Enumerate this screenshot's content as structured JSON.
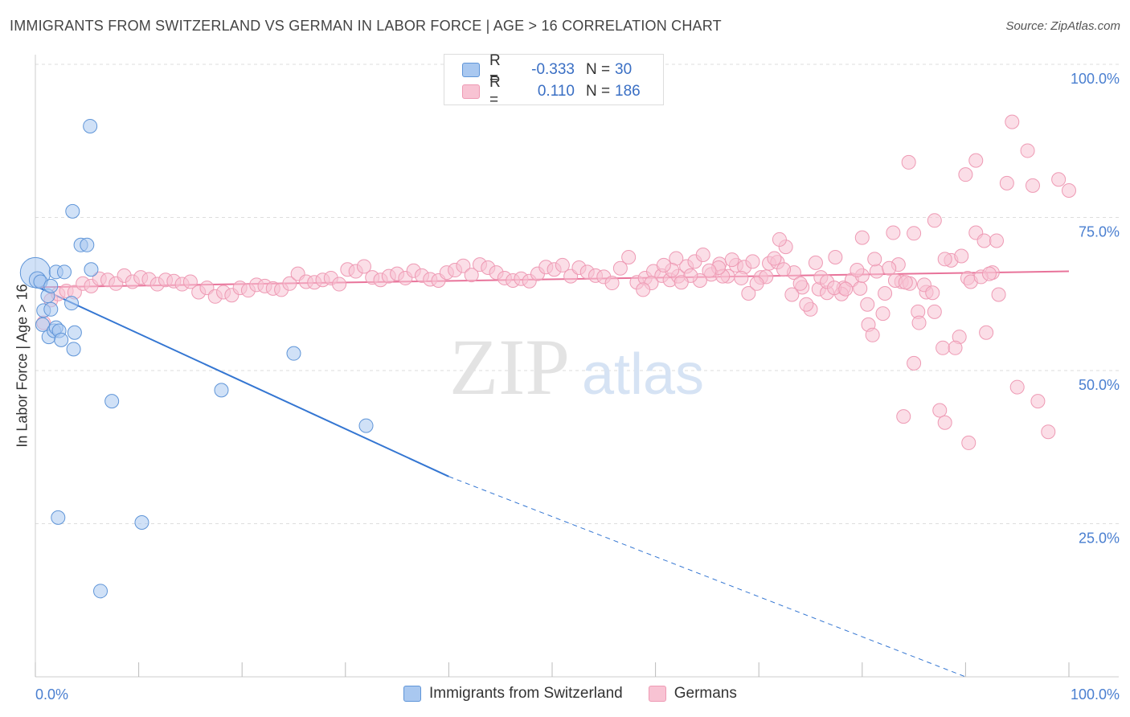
{
  "header": {
    "title": "IMMIGRANTS FROM SWITZERLAND VS GERMAN IN LABOR FORCE | AGE > 16 CORRELATION CHART",
    "source": "Source: ZipAtlas.com"
  },
  "watermark": {
    "zip": "ZIP",
    "atlas": "atlas"
  },
  "legend_top": {
    "rows": [
      {
        "r_label": "R =",
        "r_value": "-0.333",
        "n_label": "N =",
        "n_value": "30",
        "color": "#a9c8f0",
        "stroke": "#7aa6e0"
      },
      {
        "r_label": "R =",
        "r_value": "0.110",
        "n_label": "N =",
        "n_value": "186",
        "color": "#f8c3d3",
        "stroke": "#ee9ab4"
      }
    ]
  },
  "chart_data": {
    "type": "scatter",
    "xlabel": "",
    "ylabel": "In Labor Force | Age > 16",
    "xlim": [
      0,
      100
    ],
    "ylim": [
      0,
      100
    ],
    "x_tick_labels": [
      "0.0%",
      "100.0%"
    ],
    "y_tick_labels": [
      "25.0%",
      "50.0%",
      "75.0%",
      "100.0%"
    ],
    "y_ticks": [
      25,
      50,
      75,
      100
    ],
    "grid": true,
    "legend_placement": "top-center",
    "series": [
      {
        "name": "Immigrants from Switzerland",
        "color": "#a9c8f0",
        "stroke": "#5f95d8",
        "trend_color": "#3476d2",
        "trend": {
          "x0": 0,
          "y0": 63.8,
          "x1": 40,
          "y1": 32.7,
          "dash_to_x": 90,
          "dash_to_y": 0
        },
        "points": [
          [
            0,
            66,
            2.2
          ],
          [
            0.2,
            64.8,
            1.2
          ],
          [
            0.5,
            64.5,
            1
          ],
          [
            0.8,
            59.8,
            1
          ],
          [
            1.2,
            62.2,
            1
          ],
          [
            1.5,
            60,
            1
          ],
          [
            2,
            66.1,
            1
          ],
          [
            2.8,
            66.1,
            1
          ],
          [
            3.5,
            61,
            1
          ],
          [
            0.7,
            57.5,
            1
          ],
          [
            1.3,
            55.5,
            1
          ],
          [
            1.8,
            56.5,
            1
          ],
          [
            2,
            57,
            1
          ],
          [
            2.3,
            56.5,
            1
          ],
          [
            2.5,
            55,
            1
          ],
          [
            3.6,
            76,
            1
          ],
          [
            4.4,
            70.5,
            1
          ],
          [
            5,
            70.5,
            1
          ],
          [
            5.4,
            66.5,
            1
          ],
          [
            3.7,
            53.5,
            1
          ],
          [
            3.8,
            56.2,
            1
          ],
          [
            5.3,
            89.9,
            1
          ],
          [
            7.4,
            45,
            1
          ],
          [
            18,
            46.8,
            1
          ],
          [
            25,
            52.8,
            1
          ],
          [
            32,
            41,
            1
          ],
          [
            2.2,
            26,
            1
          ],
          [
            10.3,
            25.2,
            1
          ],
          [
            6.3,
            14,
            1
          ],
          [
            1.5,
            63.8,
            1
          ]
        ]
      },
      {
        "name": "Germans",
        "color": "#f8c3d3",
        "stroke": "#ee9ab4",
        "trend_color": "#e8739a",
        "trend": {
          "x0": 0,
          "y0": 63.6,
          "x1": 100,
          "y1": 66.2
        },
        "points": [
          [
            0.8,
            57.8,
            1
          ],
          [
            1.5,
            61.5,
            1
          ],
          [
            2.2,
            62.5,
            1
          ],
          [
            3,
            63,
            1
          ],
          [
            3.8,
            62.8,
            1
          ],
          [
            4.6,
            64.2,
            1
          ],
          [
            5.4,
            63.8,
            1
          ],
          [
            6.2,
            65,
            1
          ],
          [
            7,
            64.8,
            1
          ],
          [
            7.8,
            64.2,
            1
          ],
          [
            8.6,
            65.5,
            1
          ],
          [
            9.4,
            64.5,
            1
          ],
          [
            10.2,
            65.2,
            1
          ],
          [
            11,
            64.9,
            1
          ],
          [
            11.8,
            64.1,
            1
          ],
          [
            12.6,
            64.8,
            1
          ],
          [
            13.4,
            64.6,
            1
          ],
          [
            14.2,
            64.1,
            1
          ],
          [
            15,
            64.5,
            1
          ],
          [
            15.8,
            62.8,
            1
          ],
          [
            16.6,
            63.5,
            1
          ],
          [
            17.4,
            62.1,
            1
          ],
          [
            18.2,
            62.8,
            1
          ],
          [
            19,
            62.3,
            1
          ],
          [
            19.8,
            63.5,
            1
          ],
          [
            20.6,
            63.1,
            1
          ],
          [
            21.4,
            64,
            1
          ],
          [
            22.2,
            63.8,
            1
          ],
          [
            23,
            63.4,
            1
          ],
          [
            23.8,
            63.2,
            1
          ],
          [
            24.6,
            64.2,
            1
          ],
          [
            25.4,
            65.8,
            1
          ],
          [
            26.2,
            64.5,
            1
          ],
          [
            27,
            64.4,
            1
          ],
          [
            27.8,
            64.8,
            1
          ],
          [
            28.6,
            65.1,
            1
          ],
          [
            29.4,
            64.1,
            1
          ],
          [
            30.2,
            66.5,
            1
          ],
          [
            31,
            66.2,
            1
          ],
          [
            31.8,
            67,
            1
          ],
          [
            32.6,
            65.2,
            1
          ],
          [
            33.4,
            64.8,
            1
          ],
          [
            34.2,
            65.4,
            1
          ],
          [
            35,
            65.8,
            1
          ],
          [
            35.8,
            65.1,
            1
          ],
          [
            36.6,
            66.3,
            1
          ],
          [
            37.4,
            65.5,
            1
          ],
          [
            38.2,
            64.9,
            1
          ],
          [
            39,
            64.7,
            1
          ],
          [
            39.8,
            66,
            1
          ],
          [
            40.6,
            66.4,
            1
          ],
          [
            41.4,
            67.1,
            1
          ],
          [
            42.2,
            65.6,
            1
          ],
          [
            43,
            67.3,
            1
          ],
          [
            43.8,
            66.8,
            1
          ],
          [
            44.6,
            66,
            1
          ],
          [
            45.4,
            65.1,
            1
          ],
          [
            46.2,
            64.7,
            1
          ],
          [
            47,
            65,
            1
          ],
          [
            47.8,
            64.6,
            1
          ],
          [
            48.6,
            65.8,
            1
          ],
          [
            49.4,
            66.9,
            1
          ],
          [
            50.2,
            66.5,
            1
          ],
          [
            51,
            67.2,
            1
          ],
          [
            51.8,
            65.4,
            1
          ],
          [
            52.6,
            66.8,
            1
          ],
          [
            53.4,
            66.1,
            1
          ],
          [
            54.2,
            65.5,
            1
          ],
          [
            55,
            65.3,
            1
          ],
          [
            55.8,
            64.3,
            1
          ],
          [
            56.6,
            66.7,
            1
          ],
          [
            57.4,
            68.5,
            1
          ],
          [
            58.2,
            64.4,
            1
          ],
          [
            59,
            65.1,
            1
          ],
          [
            59.8,
            66.2,
            1
          ],
          [
            60.6,
            65.5,
            1
          ],
          [
            61.4,
            64.8,
            1
          ],
          [
            62.2,
            65.4,
            1
          ],
          [
            63,
            67,
            1
          ],
          [
            63.8,
            67.8,
            1
          ],
          [
            64.6,
            68.9,
            1
          ],
          [
            65.4,
            65.7,
            1
          ],
          [
            66.2,
            67.4,
            1
          ],
          [
            67,
            65.4,
            1
          ],
          [
            67.8,
            67.2,
            1
          ],
          [
            68.6,
            66.9,
            1
          ],
          [
            69.4,
            67.8,
            1
          ],
          [
            70.2,
            65.2,
            1
          ],
          [
            71,
            67.5,
            1
          ],
          [
            71.8,
            67.7,
            1
          ],
          [
            72.6,
            70.2,
            1
          ],
          [
            73.4,
            66,
            1
          ],
          [
            74.2,
            63.6,
            1
          ],
          [
            75,
            60,
            1
          ],
          [
            75.8,
            63.3,
            1
          ],
          [
            76.6,
            62.7,
            1
          ],
          [
            77.4,
            68.5,
            1
          ],
          [
            78.2,
            63.5,
            1
          ],
          [
            79,
            64.8,
            1
          ],
          [
            79.8,
            63.4,
            1
          ],
          [
            80.6,
            57.5,
            1
          ],
          [
            81.4,
            66.2,
            1
          ],
          [
            82.2,
            62.6,
            1
          ],
          [
            83,
            72.5,
            1
          ],
          [
            83.8,
            64.5,
            1
          ],
          [
            84.6,
            64.2,
            1
          ],
          [
            85.4,
            59.6,
            1
          ],
          [
            86.2,
            62.8,
            1
          ],
          [
            87,
            74.5,
            1
          ],
          [
            87.8,
            53.7,
            1
          ],
          [
            88.6,
            68,
            1
          ],
          [
            89.4,
            55.5,
            1
          ],
          [
            90.2,
            65.1,
            1
          ],
          [
            91,
            72.5,
            1
          ],
          [
            91.8,
            71.2,
            1
          ],
          [
            92.6,
            66,
            1
          ],
          [
            62,
            68.3,
            1
          ],
          [
            66.5,
            65.4,
            1
          ],
          [
            69,
            62.6,
            1
          ],
          [
            72,
            71.4,
            1
          ],
          [
            74,
            64.2,
            1
          ],
          [
            76,
            65.2,
            1
          ],
          [
            78,
            62.5,
            1
          ],
          [
            80,
            65.5,
            1
          ],
          [
            81,
            55.8,
            1
          ],
          [
            82,
            59.3,
            1
          ],
          [
            84,
            42.5,
            1
          ],
          [
            85,
            72.4,
            1
          ],
          [
            86,
            64,
            1
          ],
          [
            87,
            59.6,
            1
          ],
          [
            88,
            68.2,
            1
          ],
          [
            89,
            53.7,
            1
          ],
          [
            90,
            82,
            1
          ],
          [
            91,
            84.3,
            1
          ],
          [
            92,
            56.2,
            1
          ],
          [
            93,
            71.2,
            1
          ],
          [
            94,
            80.6,
            1
          ],
          [
            95,
            47.3,
            1
          ],
          [
            96,
            85.9,
            1
          ],
          [
            97,
            45,
            1
          ],
          [
            98,
            40,
            1
          ],
          [
            99,
            81.2,
            1
          ],
          [
            100,
            79.4,
            1
          ],
          [
            84.5,
            84,
            1
          ],
          [
            94.5,
            90.6,
            1
          ],
          [
            85,
            51.2,
            1
          ],
          [
            85.5,
            57.8,
            1
          ],
          [
            87.5,
            43.5,
            1
          ],
          [
            88,
            41.5,
            1
          ],
          [
            90.3,
            38.2,
            1
          ],
          [
            96.5,
            80.2,
            1
          ],
          [
            83.5,
            67.3,
            1
          ],
          [
            80,
            71.7,
            1
          ],
          [
            74.6,
            60.8,
            1
          ],
          [
            76.6,
            64.5,
            1
          ],
          [
            77.3,
            63.5,
            1
          ],
          [
            78.4,
            63.3,
            1
          ],
          [
            79.5,
            66.4,
            1
          ],
          [
            80.5,
            60.8,
            1
          ],
          [
            81.2,
            68.2,
            1
          ],
          [
            82.6,
            66.7,
            1
          ],
          [
            83.2,
            64.7,
            1
          ],
          [
            84.2,
            64.4,
            1
          ],
          [
            86.8,
            62.7,
            1
          ],
          [
            89.6,
            68.7,
            1
          ],
          [
            90.5,
            64.5,
            1
          ],
          [
            91.5,
            65.3,
            1
          ],
          [
            92.3,
            65.8,
            1
          ],
          [
            93.2,
            62.4,
            1
          ],
          [
            75.5,
            67.6,
            1
          ],
          [
            73.2,
            62.4,
            1
          ],
          [
            72.4,
            66.5,
            1
          ],
          [
            71.5,
            68.3,
            1
          ],
          [
            70.7,
            65.3,
            1
          ],
          [
            69.8,
            64.2,
            1
          ],
          [
            68.3,
            65.1,
            1
          ],
          [
            67.4,
            68.1,
            1
          ],
          [
            66.1,
            66.8,
            1
          ],
          [
            65.2,
            66.3,
            1
          ],
          [
            64.3,
            64.7,
            1
          ],
          [
            63.4,
            65.5,
            1
          ],
          [
            62.5,
            64.4,
            1
          ],
          [
            61.6,
            66.4,
            1
          ],
          [
            60.8,
            67.2,
            1
          ],
          [
            59.6,
            64.3,
            1
          ],
          [
            58.8,
            63.2,
            1
          ]
        ]
      }
    ]
  }
}
